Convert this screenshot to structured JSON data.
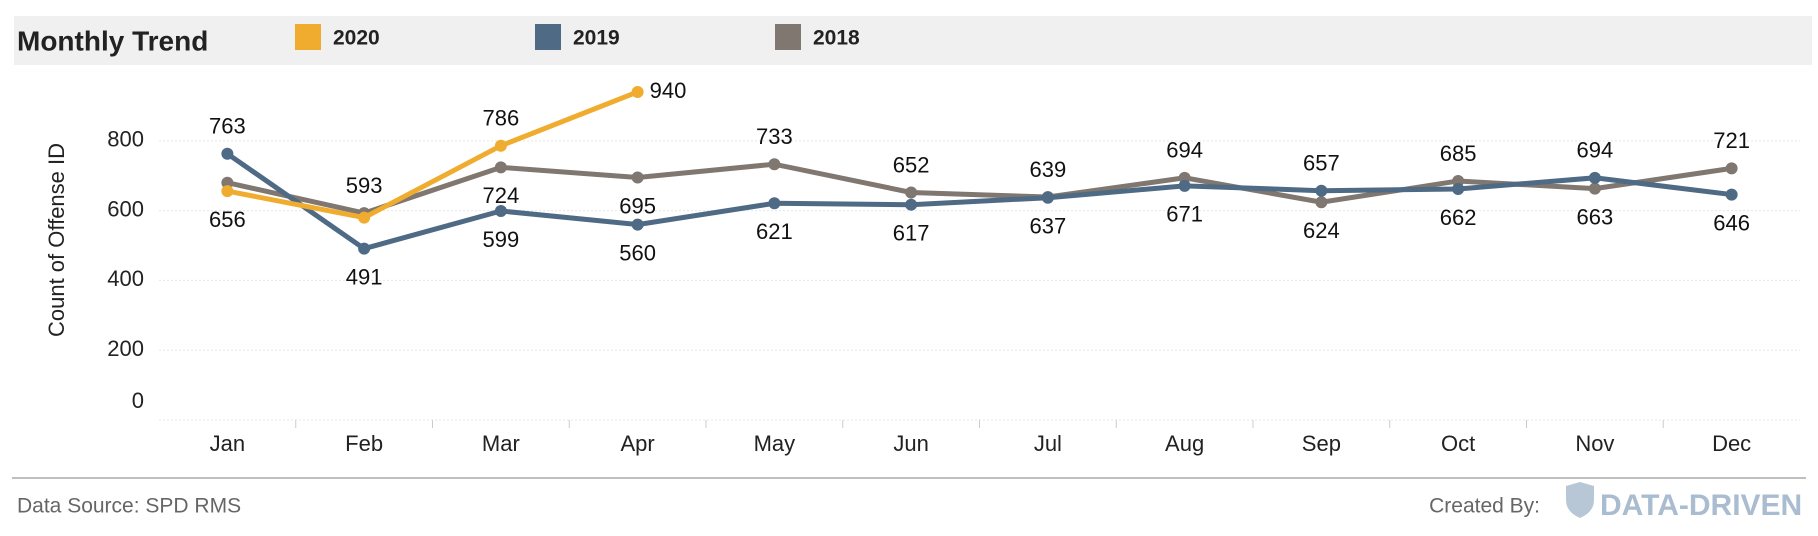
{
  "chart_data": {
    "type": "line",
    "title": "Monthly Trend",
    "y_label": "Count of Offense ID",
    "categories": [
      "Jan",
      "Feb",
      "Mar",
      "Apr",
      "May",
      "Jun",
      "Jul",
      "Aug",
      "Sep",
      "Oct",
      "Nov",
      "Dec"
    ],
    "series": [
      {
        "name": "2020",
        "color": "#f0ac2e",
        "values": [
          656,
          580,
          786,
          940,
          null,
          null,
          null,
          null,
          null,
          null,
          null,
          null
        ],
        "show_labels": [
          true,
          false,
          true,
          true,
          false,
          false,
          false,
          false,
          false,
          false,
          false,
          false
        ]
      },
      {
        "name": "2019",
        "color": "#4e6a85",
        "values": [
          763,
          491,
          599,
          560,
          621,
          617,
          637,
          671,
          657,
          662,
          694,
          646
        ],
        "show_labels": [
          true,
          true,
          true,
          true,
          true,
          true,
          true,
          true,
          true,
          true,
          true,
          true
        ]
      },
      {
        "name": "2018",
        "color": "#7f7770",
        "values": [
          680,
          593,
          724,
          695,
          733,
          652,
          639,
          694,
          624,
          685,
          663,
          721
        ],
        "show_labels": [
          false,
          true,
          true,
          true,
          true,
          true,
          true,
          true,
          true,
          true,
          true,
          true
        ]
      }
    ],
    "ylim": [
      0,
      960
    ],
    "yticks": [
      0,
      200,
      400,
      600,
      800
    ],
    "grid": true,
    "source": "Data Source: SPD RMS",
    "credit": "Created By:",
    "logo": "DATA-DRIVEN"
  }
}
